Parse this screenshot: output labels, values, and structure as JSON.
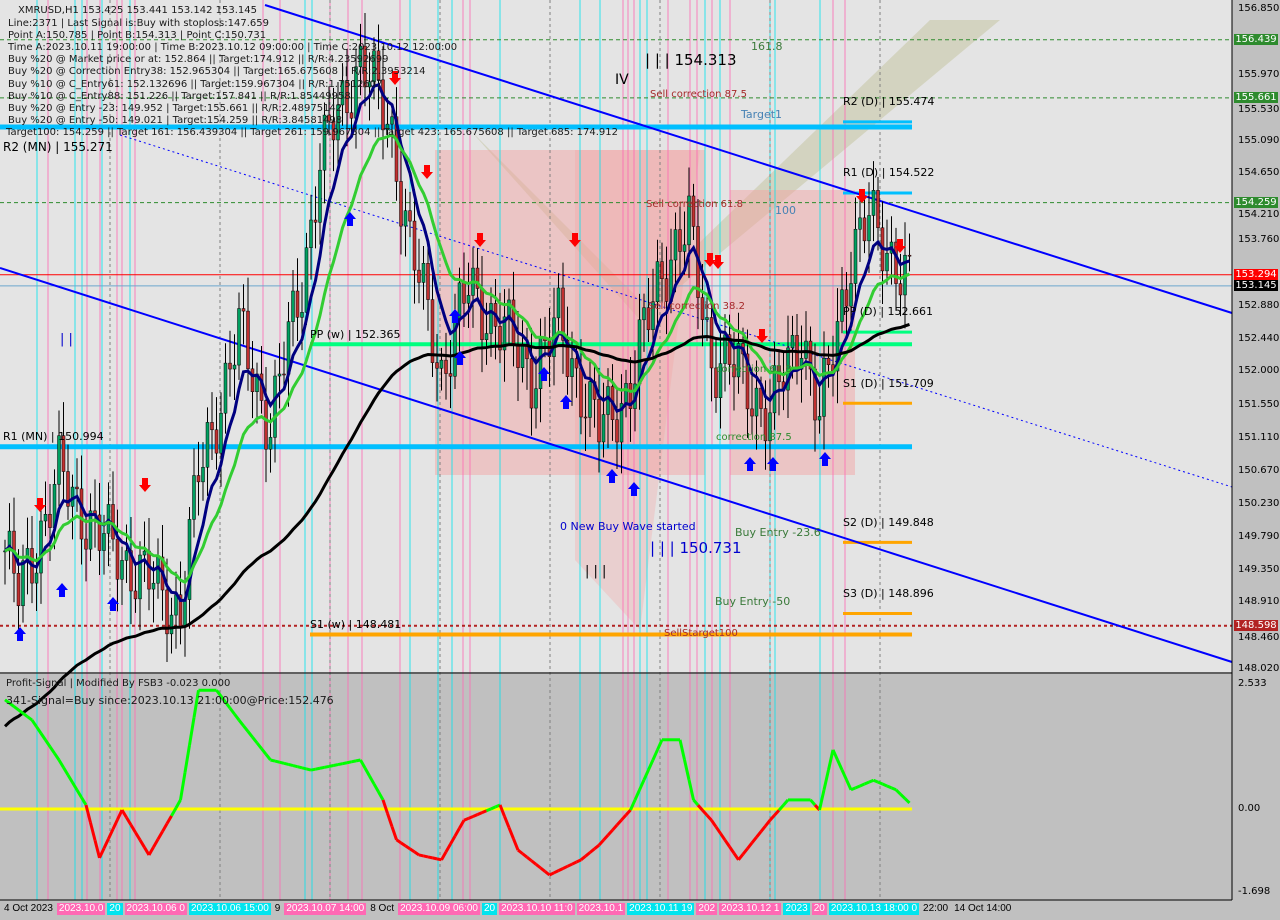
{
  "header": {
    "symbol_line": "XMRUSD,H1  153.425 153.441 153.142 153.145",
    "lines": [
      "Line:2371 | Last Signal is:Buy with stoploss:147.659",
      "Point A:150.785 | Point B:154.313 | Point C:150.731",
      "Time A:2023.10.11 19:00:00 | Time B:2023.10.12 09:00:00 | Time C:2023.10.12 12:00:00",
      "Buy %20 @ Market price or at: 152.864 || Target:174.912 || R/R:4.23592699",
      "Buy %20 @ Correction Entry38: 152.965304 || Target:165.675608 || R/R:2.3953214",
      "Buy %10 @ C_Entry61: 152.132696 || Target:159.967304 || R/R:1.7512607",
      "Buy %10 @ C_Entry88: 151.226 || Target:157.841 || R/R:1.85449958",
      "Buy %20 @ Entry -23: 149.952 | Target:155.661 || R/R:2.48975142",
      "Buy %20 @ Entry -50: 149.021 | Target:154.259 || R/R:3.84581498"
    ],
    "targets_line": "Target100: 154.259 || Target 161: 156.439304 || Target 261: 159.967304 || Target 423: 165.675608 || Target 685: 174.912"
  },
  "annotations": {
    "r2_mn": "R2 (MN) | 155.271",
    "r1_mn": "R1 (MN) | 150.994",
    "pp_w": "PP (w) | 152.365",
    "s1_w": "S1 (w) | 148.481",
    "r2_d": "R2 (D) | 155.474",
    "r1_d": "R1 (D) | 154.522",
    "pp_d": "PP (D) | 152.661",
    "s1_d": "S1 (D) | 151.709",
    "s2_d": "S2 (D) | 149.848",
    "s3_d": "S3 (D) | 148.896",
    "fib_161": "161.8",
    "fib_100": "100",
    "target1": "Target1",
    "sell_corr_875": "Sell correction 87.5",
    "sell_corr_618": "Sell correction 61.8",
    "sell_corr_382": "Sell correction 38.2",
    "corr_618": "correction 61.8",
    "corr_875": "correction 87.5",
    "wave_b": "| | | 154.313",
    "wave_iv": "IV",
    "wave_c": "| | | 150.731",
    "wave_iii": "| | |",
    "wave_ii": "| |",
    "new_buy": "0 New Buy Wave started",
    "buy_entry_236": "Buy Entry -23.6",
    "buy_entry_50": "Buy Entry -50",
    "sell_target": "SellStarget100"
  },
  "price_axis": {
    "ticks": [
      "156.850",
      "155.970",
      "155.530",
      "155.090",
      "154.650",
      "154.210",
      "153.760",
      "152.880",
      "152.440",
      "152.000",
      "151.550",
      "151.110",
      "150.670",
      "150.230",
      "149.790",
      "149.350",
      "148.910",
      "148.460",
      "148.020"
    ],
    "tags": [
      {
        "value": "156.439",
        "color": "#2e8b2e"
      },
      {
        "value": "155.661",
        "color": "#2e8b2e"
      },
      {
        "value": "154.259",
        "color": "#2e8b2e"
      },
      {
        "value": "153.294",
        "color": "#ff0000"
      },
      {
        "value": "153.145",
        "color": "#000000"
      },
      {
        "value": "148.598",
        "color": "#b22222"
      }
    ]
  },
  "indicator": {
    "title": "Profit-Signal | Modified By FSB3 -0.023 0.000",
    "signal": "341-Signal=Buy since:2023.10.13 21:00:00@Price:152.476",
    "ticks": [
      "2.533",
      "0.00",
      "-1.698"
    ]
  },
  "time_axis": [
    {
      "label": "4 Oct 2023",
      "bg": ""
    },
    {
      "label": "2023.10.0",
      "bg": "#ff69b4"
    },
    {
      "label": "20",
      "bg": "#00e5ee"
    },
    {
      "label": "2023.10.06 0",
      "bg": "#ff69b4"
    },
    {
      "label": "2023.10.06 15:00",
      "bg": "#00e5ee"
    },
    {
      "label": "9",
      "bg": ""
    },
    {
      "label": "2023.10.07 14:00",
      "bg": "#ff69b4"
    },
    {
      "label": "8 Oct",
      "bg": ""
    },
    {
      "label": "2023.10.09 06:00",
      "bg": "#ff69b4"
    },
    {
      "label": "20",
      "bg": "#00e5ee"
    },
    {
      "label": "2023.10.10 11:0",
      "bg": "#ff69b4"
    },
    {
      "label": "2023.10.1",
      "bg": "#ff69b4"
    },
    {
      "label": "2023.10.11 19",
      "bg": "#00e5ee"
    },
    {
      "label": "202",
      "bg": "#ff69b4"
    },
    {
      "label": "2023.10.12 1",
      "bg": "#ff69b4"
    },
    {
      "label": "2023",
      "bg": "#00e5ee"
    },
    {
      "label": "20",
      "bg": "#ff69b4"
    },
    {
      "label": "2023.10.13 18:00 0",
      "bg": "#00e5ee"
    },
    {
      "label": "22:00",
      "bg": ""
    },
    {
      "label": "14 Oct 14:00",
      "bg": ""
    }
  ],
  "chart_data": {
    "type": "candlestick",
    "symbol": "XMRUSD",
    "timeframe": "H1",
    "ylim": [
      148.02,
      156.85
    ],
    "close_path": [
      [
        0,
        149.6
      ],
      [
        3,
        149.0
      ],
      [
        12,
        150.6
      ],
      [
        21,
        149.8
      ],
      [
        30,
        149.3
      ],
      [
        39,
        148.8
      ],
      [
        43,
        150.6
      ],
      [
        52,
        152.5
      ],
      [
        59,
        151.3
      ],
      [
        66,
        153.2
      ],
      [
        70,
        154.8
      ],
      [
        79,
        156.2
      ],
      [
        86,
        155.2
      ],
      [
        90,
        153.7
      ],
      [
        97,
        152.0
      ],
      [
        103,
        153.1
      ],
      [
        110,
        152.6
      ],
      [
        117,
        152.0
      ],
      [
        123,
        152.6
      ],
      [
        132,
        151.2
      ],
      [
        139,
        151.8
      ],
      [
        146,
        153.4
      ],
      [
        152,
        153.9
      ],
      [
        157,
        152.2
      ],
      [
        163,
        152.0
      ],
      [
        170,
        151.4
      ],
      [
        177,
        152.6
      ],
      [
        181,
        151.3
      ],
      [
        188,
        153.6
      ],
      [
        192,
        154.0
      ],
      [
        197,
        153.6
      ],
      [
        201,
        153.15
      ]
    ],
    "horizontal_levels": [
      {
        "price": 156.439,
        "style": "green-dashed"
      },
      {
        "price": 155.661,
        "style": "green-dashed"
      },
      {
        "price": 154.259,
        "style": "green-dashed"
      },
      {
        "price": 155.271,
        "style": "r2-mn"
      },
      {
        "price": 150.994,
        "style": "r1-mn"
      },
      {
        "price": 152.365,
        "style": "pp-w"
      },
      {
        "price": 148.481,
        "style": "s1-w"
      },
      {
        "price": 148.598,
        "style": "red-dotted"
      },
      {
        "price": 153.294,
        "style": "bid"
      },
      {
        "price": 153.145,
        "style": "ask"
      },
      {
        "price": 155.474,
        "style": "r-d"
      },
      {
        "price": 154.522,
        "style": "r-d"
      },
      {
        "price": 152.661,
        "style": "pp-d"
      },
      {
        "price": 151.709,
        "style": "s-d"
      },
      {
        "price": 149.848,
        "style": "s-d"
      },
      {
        "price": 148.896,
        "style": "s-d"
      }
    ],
    "oscillator": {
      "ylim": [
        -1.698,
        2.533
      ],
      "zero": 0,
      "values": [
        [
          0,
          2.16
        ],
        [
          6,
          1.76
        ],
        [
          12,
          0.97
        ],
        [
          18,
          0.08
        ],
        [
          21,
          -1.0
        ],
        [
          26,
          -0.02
        ],
        [
          32,
          -0.94
        ],
        [
          39,
          0.18
        ],
        [
          43,
          2.35
        ],
        [
          47,
          2.35
        ],
        [
          52,
          1.76
        ],
        [
          59,
          0.97
        ],
        [
          68,
          0.77
        ],
        [
          79,
          0.97
        ],
        [
          84,
          0.18
        ],
        [
          87,
          -0.63
        ],
        [
          92,
          -0.94
        ],
        [
          97,
          -1.04
        ],
        [
          102,
          -0.23
        ],
        [
          110,
          0.08
        ],
        [
          114,
          -0.84
        ],
        [
          121,
          -1.35
        ],
        [
          128,
          -1.04
        ],
        [
          132,
          -0.74
        ],
        [
          139,
          -0.02
        ],
        [
          146,
          1.37
        ],
        [
          150,
          1.37
        ],
        [
          153,
          0.18
        ],
        [
          157,
          -0.23
        ],
        [
          163,
          -1.04
        ],
        [
          170,
          -0.23
        ],
        [
          174,
          0.18
        ],
        [
          179,
          0.18
        ],
        [
          181,
          -0.02
        ],
        [
          184,
          1.17
        ],
        [
          188,
          0.38
        ],
        [
          193,
          0.57
        ],
        [
          198,
          0.38
        ],
        [
          201,
          0.12
        ]
      ]
    }
  }
}
